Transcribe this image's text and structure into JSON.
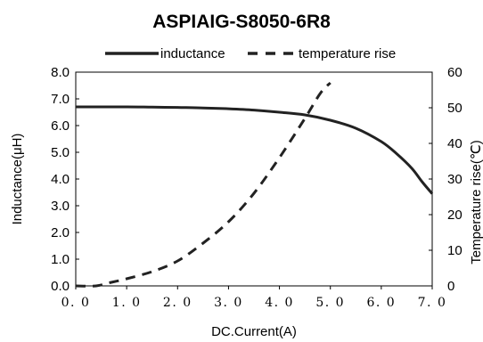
{
  "chart_data": {
    "type": "line",
    "title": "ASPIAIG-S8050-6R8",
    "xlabel": "DC.Current(A)",
    "ylabel": "Inductance(μH)",
    "y2label": "Temperature rise(℃)",
    "xlim": [
      0,
      7
    ],
    "ylim": [
      0,
      8
    ],
    "y2lim": [
      0,
      60
    ],
    "x_ticks": [
      "0.0",
      "1.0",
      "2.0",
      "3.0",
      "4.0",
      "5.0",
      "6.0",
      "7.0"
    ],
    "y_ticks": [
      "0.0",
      "1.0",
      "2.0",
      "3.0",
      "4.0",
      "5.0",
      "6.0",
      "7.0",
      "8.0"
    ],
    "y2_ticks": [
      "0",
      "10",
      "20",
      "30",
      "40",
      "50",
      "60"
    ],
    "grid": false,
    "legend_position": "top",
    "series": [
      {
        "name": "inductance",
        "axis": "left",
        "style": "solid",
        "color": "#222222",
        "x": [
          0,
          0.5,
          1.0,
          1.5,
          2.0,
          2.5,
          3.0,
          3.5,
          4.0,
          4.5,
          5.0,
          5.5,
          6.0,
          6.3,
          6.6,
          6.8,
          7.0
        ],
        "y": [
          6.7,
          6.7,
          6.7,
          6.69,
          6.68,
          6.66,
          6.63,
          6.58,
          6.5,
          6.4,
          6.2,
          5.9,
          5.4,
          4.95,
          4.4,
          3.9,
          3.45
        ]
      },
      {
        "name": "temperature rise",
        "axis": "right",
        "style": "dashed",
        "color": "#222222",
        "x": [
          0,
          0.4,
          0.7,
          1.0,
          1.5,
          2.0,
          2.5,
          3.0,
          3.5,
          4.0,
          4.5,
          4.8,
          5.0
        ],
        "y": [
          0,
          0,
          1,
          2,
          4,
          7,
          12,
          18,
          26,
          36,
          47,
          54,
          57
        ]
      }
    ]
  }
}
